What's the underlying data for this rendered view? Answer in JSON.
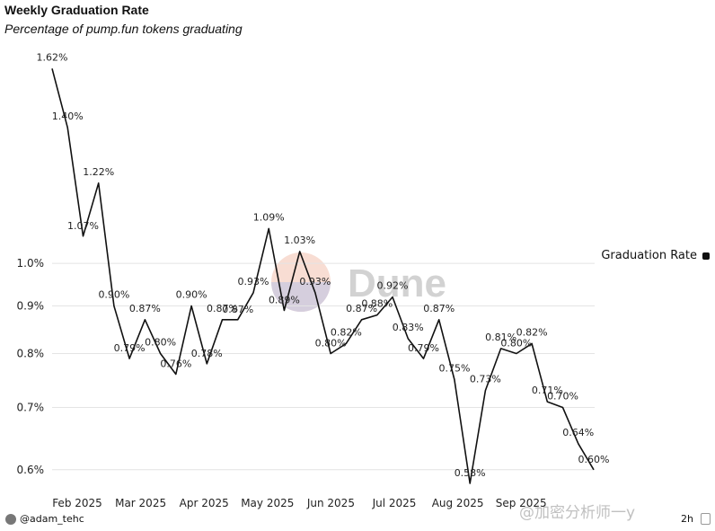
{
  "header": {
    "title": "Weekly Graduation Rate",
    "subtitle": "Percentage of pump.fun tokens graduating"
  },
  "legend": {
    "label": "Graduation Rate",
    "color": "#111111"
  },
  "footer": {
    "author": "@adam_tehc",
    "age": "2h",
    "watermark_text": "@加密分析师一y",
    "dune_logo_text": "Dune"
  },
  "chart_data": {
    "type": "line",
    "title": "Weekly Graduation Rate",
    "subtitle": "Percentage of pump.fun tokens graduating",
    "y_scale": "log",
    "ylim": [
      0.58,
      1.68
    ],
    "y_ticks": [
      {
        "value": 1.0,
        "label": "1.0%"
      },
      {
        "value": 0.9,
        "label": "0.9%"
      },
      {
        "value": 0.8,
        "label": "0.8%"
      },
      {
        "value": 0.7,
        "label": "0.7%"
      },
      {
        "value": 0.6,
        "label": "0.6%"
      }
    ],
    "x_ticks": [
      "Feb 2025",
      "Mar 2025",
      "Apr 2025",
      "May 2025",
      "Jun 2025",
      "Jul 2025",
      "Aug 2025",
      "Sep 2025"
    ],
    "grid": true,
    "legend_position": "right",
    "series": [
      {
        "name": "Graduation Rate",
        "color": "#111111",
        "values": [
          1.62,
          1.4,
          1.07,
          1.22,
          0.9,
          0.79,
          0.87,
          0.8,
          0.76,
          0.9,
          0.78,
          0.87,
          0.87,
          0.93,
          1.09,
          0.89,
          1.03,
          0.93,
          0.8,
          0.82,
          0.87,
          0.88,
          0.92,
          0.83,
          0.79,
          0.87,
          0.75,
          0.58,
          0.73,
          0.81,
          0.8,
          0.82,
          0.71,
          0.7,
          0.64,
          0.6
        ],
        "labels": [
          "1.62%",
          "1.40%",
          "1.07%",
          "1.22%",
          "0.90%",
          "0.79%",
          "0.87%",
          "0.80%",
          "0.76%",
          "0.90%",
          "0.78%",
          "0.87%",
          "0.87%",
          "0.93%",
          "1.09%",
          "0.89%",
          "1.03%",
          "0.93%",
          "0.80%",
          "0.82%",
          "0.87%",
          "0.88%",
          "0.92%",
          "0.83%",
          "0.79%",
          "0.87%",
          "0.75%",
          "0.58%",
          "0.73%",
          "0.81%",
          "0.80%",
          "0.82%",
          "0.71%",
          "0.70%",
          "0.64%",
          "0.60%"
        ]
      }
    ]
  }
}
